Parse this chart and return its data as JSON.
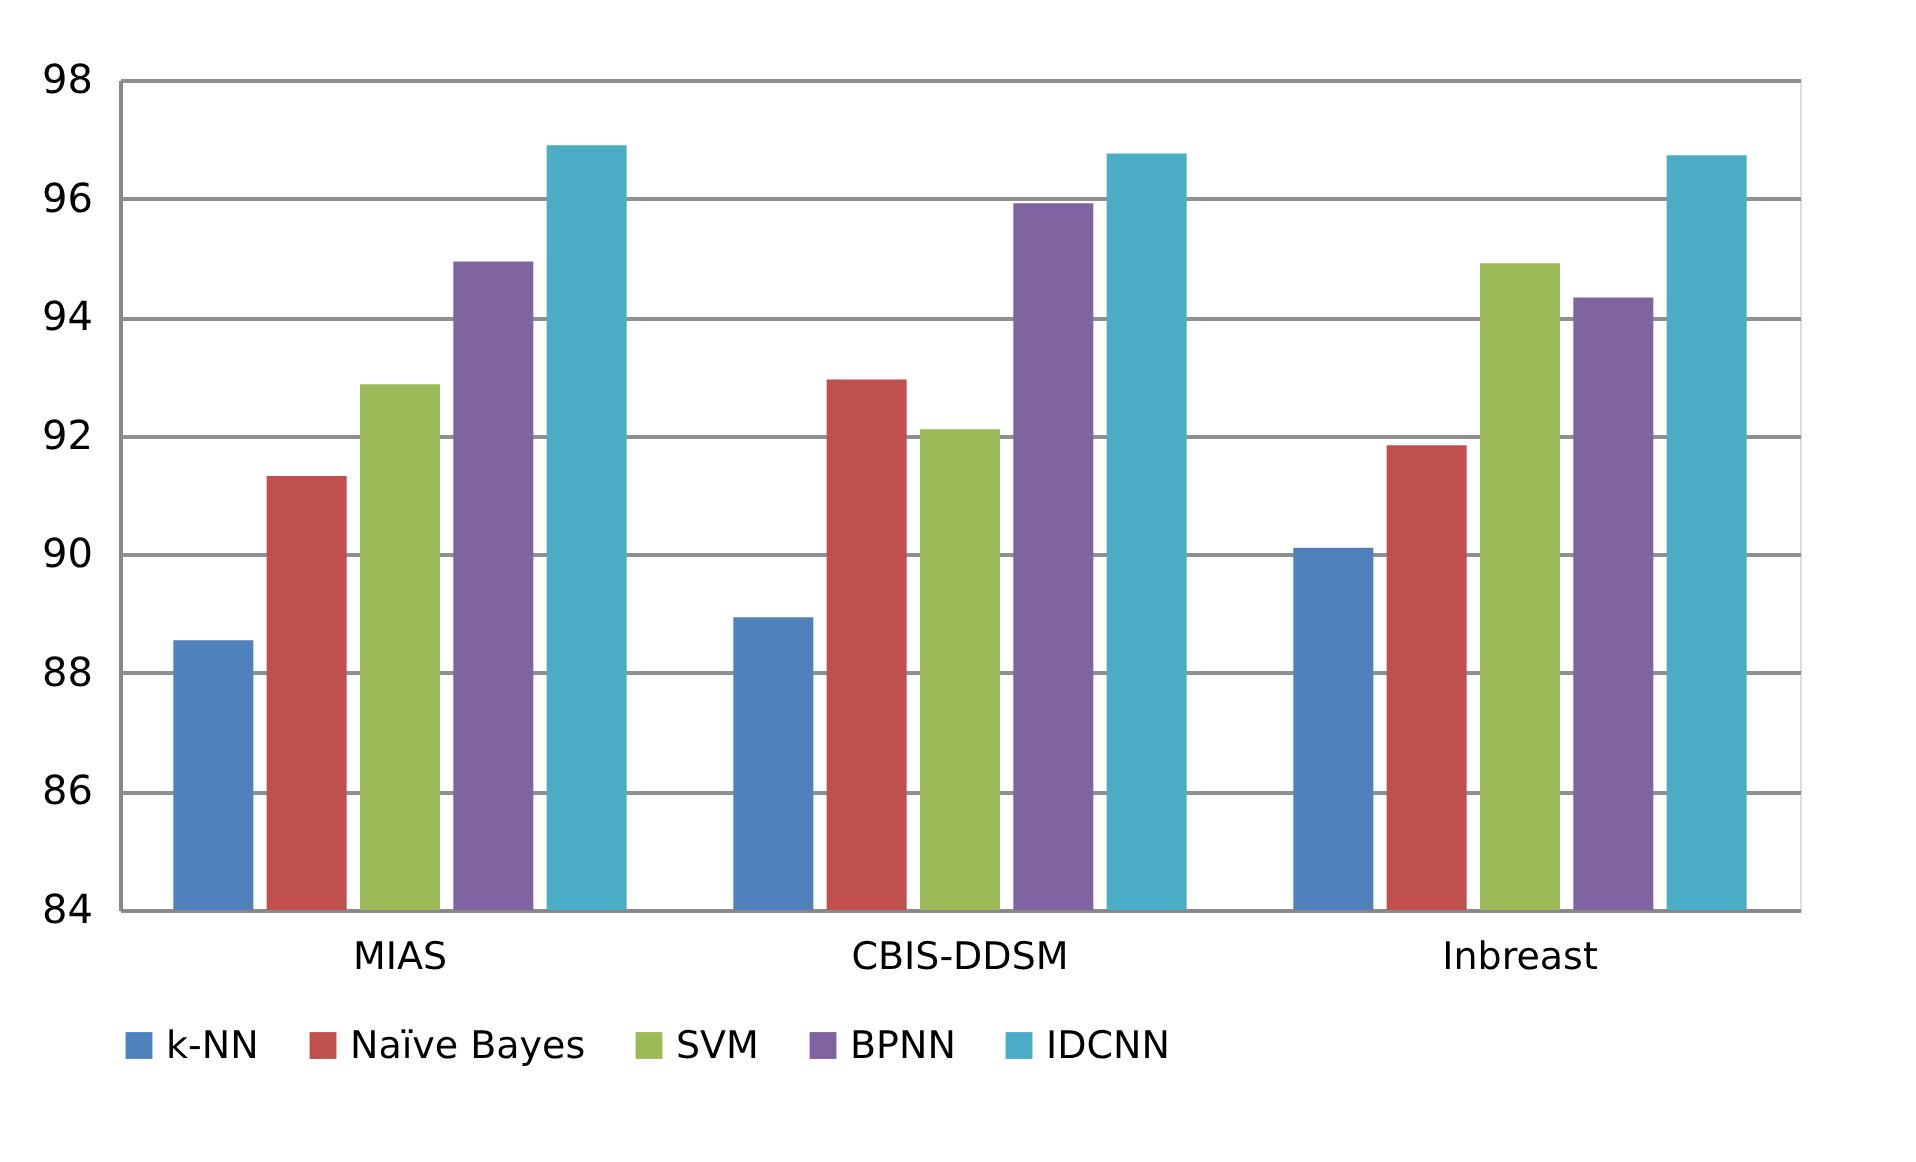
{
  "chart_data": {
    "type": "bar",
    "categories": [
      "MIAS",
      "CBIS-DDSM",
      "Inbreast"
    ],
    "series": [
      {
        "name": "k-NN",
        "color": "#4f81bd",
        "values": [
          88.55,
          88.94,
          90.11
        ]
      },
      {
        "name": "Naïve Bayes",
        "color": "#c0504d",
        "values": [
          91.32,
          92.95,
          91.84
        ]
      },
      {
        "name": "SVM",
        "color": "#9bbb59",
        "values": [
          92.87,
          92.11,
          94.91
        ]
      },
      {
        "name": "BPNN",
        "color": "#8064a2",
        "values": [
          94.94,
          95.92,
          94.33
        ]
      },
      {
        "name": "IDCNN",
        "color": "#4bacc6",
        "values": [
          96.9,
          96.76,
          96.73
        ]
      }
    ],
    "ylim": [
      84,
      98
    ],
    "yticks": [
      84,
      86,
      88,
      90,
      92,
      94,
      96,
      98
    ],
    "grid": "y",
    "legend": "bottom"
  }
}
